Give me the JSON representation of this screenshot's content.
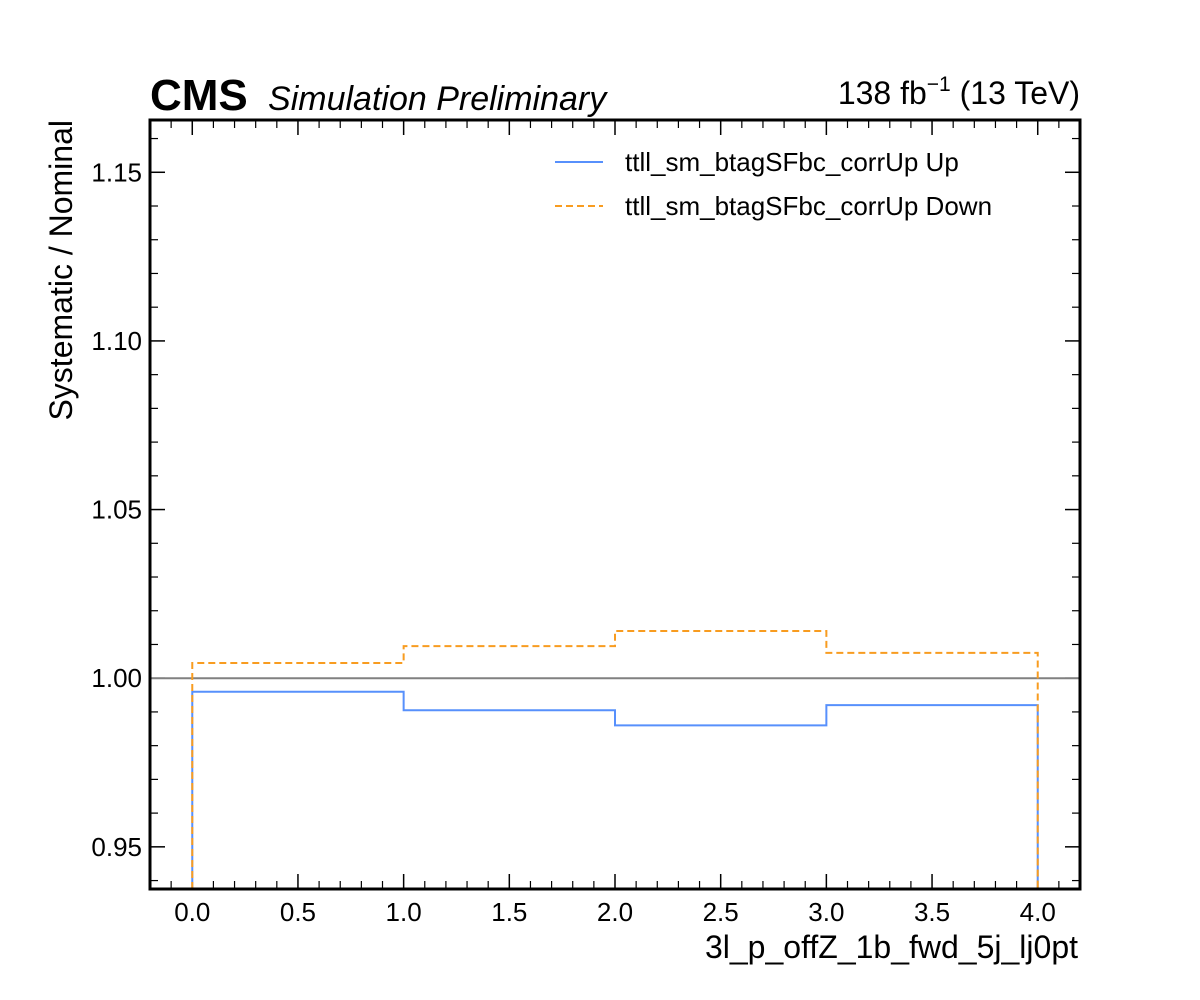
{
  "chart_data": {
    "type": "line",
    "style": "step",
    "experiment": "CMS",
    "experiment_subtitle": "Simulation Preliminary",
    "lumi_prefix": "138 fb",
    "lumi_exponent": "−1",
    "lumi_suffix": " (13 TeV)",
    "xlabel": "3l_p_offZ_1b_fwd_5j_lj0pt",
    "ylabel": "Systematic / Nominal",
    "xlim": [
      -0.2,
      4.2
    ],
    "ylim": [
      0.9375,
      1.1655
    ],
    "x_ticks": [
      "0.0",
      "0.5",
      "1.0",
      "1.5",
      "2.0",
      "2.5",
      "3.0",
      "3.5",
      "4.0"
    ],
    "y_ticks": [
      "0.95",
      "1.00",
      "1.05",
      "1.10",
      "1.15"
    ],
    "bin_edges": [
      0,
      1,
      2,
      3,
      4
    ],
    "reference_line": 1.0,
    "legend_position": "top-right",
    "series": [
      {
        "name": "ttll_sm_btagSFbc_corrUp Up",
        "values": [
          0.996,
          0.9905,
          0.986,
          0.992
        ],
        "color": "#5790fc",
        "dash": "solid"
      },
      {
        "name": "ttll_sm_btagSFbc_corrUp Down",
        "values": [
          1.0045,
          1.0095,
          1.014,
          1.0075
        ],
        "color": "#f89c20",
        "dash": "dashed"
      }
    ],
    "reference_color": "#808080"
  }
}
